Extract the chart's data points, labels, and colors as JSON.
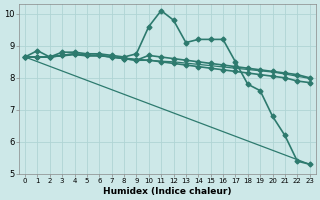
{
  "xlabel": "Humidex (Indice chaleur)",
  "ylabel": "",
  "xlim": [
    -0.5,
    23.5
  ],
  "ylim": [
    5,
    10.3
  ],
  "yticks": [
    5,
    6,
    7,
    8,
    9,
    10
  ],
  "xticks": [
    0,
    1,
    2,
    3,
    4,
    5,
    6,
    7,
    8,
    9,
    10,
    11,
    12,
    13,
    14,
    15,
    16,
    17,
    18,
    19,
    20,
    21,
    22,
    23
  ],
  "bg_color": "#cde8e8",
  "line_color": "#2d7a6e",
  "grid_color": "#b0d4d4",
  "series": [
    {
      "x": [
        0,
        1,
        2,
        3,
        4,
        5,
        6,
        7,
        8,
        9,
        10,
        11,
        12,
        13,
        14,
        15,
        16,
        17,
        18,
        19,
        20,
        21,
        22,
        23
      ],
      "y": [
        8.65,
        8.85,
        8.65,
        8.8,
        8.8,
        8.75,
        8.75,
        8.7,
        8.65,
        8.75,
        9.6,
        10.1,
        9.8,
        9.1,
        9.2,
        9.2,
        9.2,
        8.5,
        7.8,
        7.6,
        6.8,
        6.2,
        5.4,
        5.3
      ],
      "marker": "D",
      "markersize": 2.5,
      "linewidth": 1.2
    },
    {
      "x": [
        0,
        1,
        2,
        3,
        4,
        5,
        6,
        7,
        8,
        9,
        10,
        11,
        12,
        13,
        14,
        15,
        16,
        17,
        18,
        19,
        20,
        21,
        22,
        23
      ],
      "y": [
        8.65,
        8.65,
        8.65,
        8.7,
        8.75,
        8.7,
        8.7,
        8.65,
        8.6,
        8.55,
        8.55,
        8.5,
        8.45,
        8.4,
        8.35,
        8.3,
        8.25,
        8.2,
        8.15,
        8.1,
        8.05,
        8.0,
        7.9,
        7.85
      ],
      "marker": "D",
      "markersize": 2.5,
      "linewidth": 1.2
    },
    {
      "x": [
        0,
        1,
        2,
        3,
        4,
        5,
        6,
        7,
        8,
        9,
        10,
        11,
        12,
        13,
        14,
        15,
        16,
        17,
        18,
        19,
        20,
        21,
        22,
        23
      ],
      "y": [
        8.65,
        8.65,
        8.65,
        8.7,
        8.75,
        8.7,
        8.7,
        8.65,
        8.6,
        8.55,
        8.7,
        8.65,
        8.6,
        8.55,
        8.5,
        8.45,
        8.4,
        8.35,
        8.3,
        8.25,
        8.2,
        8.15,
        8.1,
        8.0
      ],
      "marker": "D",
      "markersize": 2.5,
      "linewidth": 1.2
    },
    {
      "x": [
        0,
        1,
        2,
        3,
        4,
        5,
        6,
        7,
        8,
        9,
        10,
        11,
        12,
        13,
        14,
        15,
        16,
        17,
        18,
        19,
        20,
        21,
        22,
        23
      ],
      "y": [
        8.65,
        8.65,
        8.65,
        8.68,
        8.72,
        8.68,
        8.68,
        8.65,
        8.62,
        8.58,
        8.55,
        8.52,
        8.5,
        8.46,
        8.42,
        8.38,
        8.34,
        8.3,
        8.26,
        8.22,
        8.18,
        8.12,
        8.05,
        7.98
      ],
      "marker": null,
      "markersize": 0,
      "linewidth": 0.9
    },
    {
      "x": [
        0,
        23
      ],
      "y": [
        8.65,
        5.3
      ],
      "marker": null,
      "markersize": 0,
      "linewidth": 0.9
    }
  ]
}
